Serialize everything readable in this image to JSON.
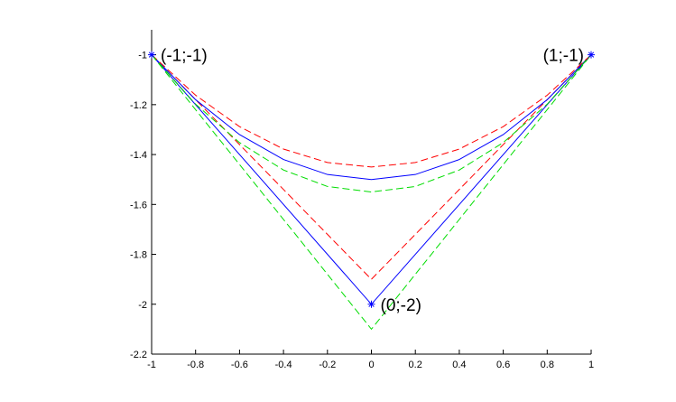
{
  "chart_data": {
    "type": "line",
    "title": "",
    "xlabel": "",
    "ylabel": "",
    "xlim": [
      -1,
      1
    ],
    "ylim": [
      -2.2,
      -0.9
    ],
    "grid": false,
    "x_ticks": [
      -1,
      -0.8,
      -0.6,
      -0.4,
      -0.2,
      0,
      0.2,
      0.4,
      0.6,
      0.8,
      1
    ],
    "x_tick_labels": [
      "-1",
      "-0.8",
      "-0.6",
      "-0.4",
      "-0.2",
      "0",
      "0.2",
      "0.4",
      "0.6",
      "0.8",
      "1"
    ],
    "y_ticks": [
      -1,
      -1.2,
      -1.4,
      -1.6,
      -1.8,
      -2,
      -2.2
    ],
    "y_tick_labels": [
      "-1",
      "-1.2",
      "-1.4",
      "-1.6",
      "-1.8",
      "-2",
      "-2.2"
    ],
    "series": [
      {
        "color": "#0000ff",
        "style": "solid",
        "x": [
          -1,
          0,
          1
        ],
        "y": [
          -1,
          -2,
          -1
        ]
      },
      {
        "color": "#ff0000",
        "style": "dashed",
        "x": [
          -1,
          0,
          1
        ],
        "y": [
          -1,
          -1.9,
          -1
        ]
      },
      {
        "color": "#00dd00",
        "style": "dashed",
        "x": [
          -1,
          0,
          1
        ],
        "y": [
          -1,
          -2.1,
          -1
        ]
      },
      {
        "color": "#0000ff",
        "style": "solid",
        "x": [
          -1,
          -0.8,
          -0.6,
          -0.4,
          -0.2,
          0,
          0.2,
          0.4,
          0.6,
          0.8,
          1
        ],
        "y": [
          -1,
          -1.18,
          -1.32,
          -1.42,
          -1.48,
          -1.5,
          -1.48,
          -1.42,
          -1.32,
          -1.18,
          -1
        ]
      },
      {
        "color": "#ff0000",
        "style": "dashed",
        "x": [
          -1,
          -0.8,
          -0.6,
          -0.4,
          -0.2,
          0,
          0.2,
          0.4,
          0.6,
          0.8,
          1
        ],
        "y": [
          -1,
          -1.162,
          -1.288,
          -1.378,
          -1.432,
          -1.45,
          -1.432,
          -1.378,
          -1.288,
          -1.162,
          -1
        ]
      },
      {
        "color": "#00dd00",
        "style": "dashed",
        "x": [
          -1,
          -0.8,
          -0.6,
          -0.4,
          -0.2,
          0,
          0.2,
          0.4,
          0.6,
          0.8,
          1
        ],
        "y": [
          -1,
          -1.198,
          -1.352,
          -1.462,
          -1.528,
          -1.55,
          -1.528,
          -1.462,
          -1.352,
          -1.198,
          -1
        ]
      }
    ],
    "markers": [
      {
        "x": -1,
        "y": -1,
        "color": "#0000ff"
      },
      {
        "x": 0,
        "y": -2,
        "color": "#0000ff"
      },
      {
        "x": 1,
        "y": -1,
        "color": "#0000ff"
      }
    ],
    "annotations": [
      {
        "text": "(-1;-1)",
        "x": -1,
        "y": -1,
        "anchor": "start"
      },
      {
        "text": "(1;-1)",
        "x": 1,
        "y": -1,
        "anchor": "end"
      },
      {
        "text": "(0;-2)",
        "x": 0,
        "y": -2,
        "anchor": "start"
      }
    ]
  }
}
